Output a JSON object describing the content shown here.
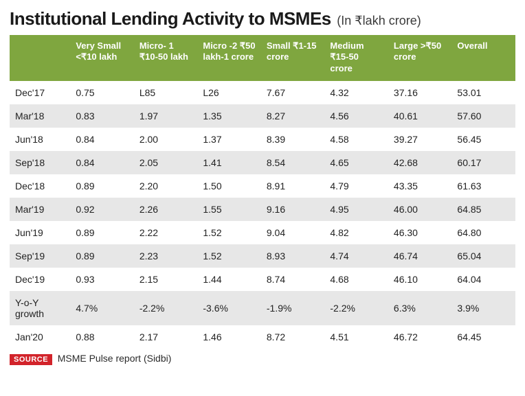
{
  "title": "Institutional Lending Activity to MSMEs",
  "subtitle": "(In ₹lakh crore)",
  "table": {
    "header_bg": "#7fa63f",
    "header_fg": "#ffffff",
    "row_alt_bg": "#e7e7e7",
    "row_bg": "#ffffff",
    "text_color": "#222222",
    "columns": [
      "",
      "Very Small <₹10 lakh",
      "Micro- 1 ₹10-50 lakh",
      "Micro -2 ₹50 lakh-1 crore",
      "Small ₹1-15 crore",
      "Medium ₹15-50 crore",
      "Large >₹50 crore",
      "Overall"
    ],
    "rows": [
      [
        "Dec'17",
        "0.75",
        "L85",
        "L26",
        "7.67",
        "4.32",
        "37.16",
        "53.01"
      ],
      [
        "Mar'18",
        "0.83",
        "1.97",
        "1.35",
        "8.27",
        "4.56",
        "40.61",
        "57.60"
      ],
      [
        "Jun'18",
        "0.84",
        "2.00",
        "1.37",
        "8.39",
        "4.58",
        "39.27",
        "56.45"
      ],
      [
        "Sep'18",
        "0.84",
        "2.05",
        "1.41",
        "8.54",
        "4.65",
        "42.68",
        "60.17"
      ],
      [
        "Dec'18",
        "0.89",
        "2.20",
        "1.50",
        "8.91",
        "4.79",
        "43.35",
        "61.63"
      ],
      [
        "Mar'19",
        "0.92",
        "2.26",
        "1.55",
        "9.16",
        "4.95",
        "46.00",
        "64.85"
      ],
      [
        "Jun'19",
        "0.89",
        "2.22",
        "1.52",
        "9.04",
        "4.82",
        "46.30",
        "64.80"
      ],
      [
        "Sep'19",
        "0.89",
        "2.23",
        "1.52",
        "8.93",
        "4.74",
        "46.74",
        "65.04"
      ],
      [
        "Dec'19",
        "0.93",
        "2.15",
        "1.44",
        "8.74",
        "4.68",
        "46.10",
        "64.04"
      ],
      [
        "Y-o-Y growth",
        "4.7%",
        "-2.2%",
        "-3.6%",
        "-1.9%",
        "-2.2%",
        "6.3%",
        "3.9%"
      ],
      [
        "Jan'20",
        "0.88",
        "2.17",
        "1.46",
        "8.72",
        "4.51",
        "46.72",
        "64.45"
      ]
    ]
  },
  "source": {
    "label": "SOURCE",
    "text": "MSME Pulse report (Sidbi)"
  }
}
